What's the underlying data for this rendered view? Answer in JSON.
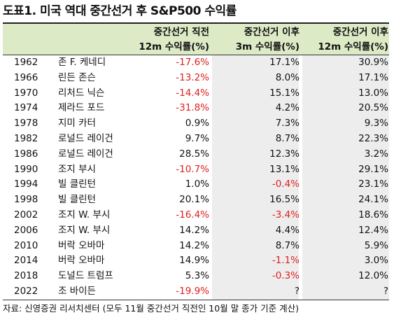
{
  "title": "도표1. 미국 역대 중간선거 후 S&P500 수익률",
  "headers": {
    "col2": [
      "중간선거 직전",
      "12m 수익률(%)"
    ],
    "col3": [
      "중간선거 이후",
      "3m 수익률(%)"
    ],
    "col4": [
      "중간선거 이후",
      "12m 수익률(%)"
    ]
  },
  "colors": {
    "negative": "#e02020",
    "header_bg": "#ddeac6",
    "shade": "#ededed"
  },
  "rows": [
    {
      "year": "1962",
      "president": "존 F. 케네디",
      "pre12m": "-17.6%",
      "post3m": "17.1%",
      "post12m": "30.9%"
    },
    {
      "year": "1966",
      "president": "린든 존슨",
      "pre12m": "-13.2%",
      "post3m": "8.0%",
      "post12m": "17.1%"
    },
    {
      "year": "1970",
      "president": "리처드 닉슨",
      "pre12m": "-14.4%",
      "post3m": "15.1%",
      "post12m": "13.0%"
    },
    {
      "year": "1974",
      "president": "제라드 포드",
      "pre12m": "-31.8%",
      "post3m": "4.2%",
      "post12m": "20.5%"
    },
    {
      "year": "1978",
      "president": "지미 카터",
      "pre12m": "0.9%",
      "post3m": "7.3%",
      "post12m": "9.3%"
    },
    {
      "year": "1982",
      "president": "로널드 레이건",
      "pre12m": "9.7%",
      "post3m": "8.7%",
      "post12m": "22.3%"
    },
    {
      "year": "1986",
      "president": "로널드 레이건",
      "pre12m": "28.5%",
      "post3m": "12.3%",
      "post12m": "3.2%"
    },
    {
      "year": "1990",
      "president": "조지 부시",
      "pre12m": "-10.7%",
      "post3m": "13.1%",
      "post12m": "29.1%"
    },
    {
      "year": "1994",
      "president": "빌 클린턴",
      "pre12m": "1.0%",
      "post3m": "-0.4%",
      "post12m": "23.1%"
    },
    {
      "year": "1998",
      "president": "빌 클린턴",
      "pre12m": "20.1%",
      "post3m": "16.5%",
      "post12m": "24.1%"
    },
    {
      "year": "2002",
      "president": "조지 W. 부시",
      "pre12m": "-16.4%",
      "post3m": "-3.4%",
      "post12m": "18.6%"
    },
    {
      "year": "2006",
      "president": "조지 W. 부시",
      "pre12m": "14.2%",
      "post3m": "4.4%",
      "post12m": "12.4%"
    },
    {
      "year": "2010",
      "president": "버락 오바마",
      "pre12m": "14.2%",
      "post3m": "8.7%",
      "post12m": "5.9%"
    },
    {
      "year": "2014",
      "president": "버락 오바마",
      "pre12m": "14.9%",
      "post3m": "-1.1%",
      "post12m": "3.0%"
    },
    {
      "year": "2018",
      "president": "도널드 트럼프",
      "pre12m": "5.3%",
      "post3m": "-0.3%",
      "post12m": "12.0%"
    },
    {
      "year": "2022",
      "president": "조 바이든",
      "pre12m": "-19.9%",
      "post3m": "?",
      "post12m": "?"
    }
  ],
  "source": "자료: 신영증권 리서치센터 (모두 11월 중간선거 직전인 10월 말 종가 기준 계산)"
}
